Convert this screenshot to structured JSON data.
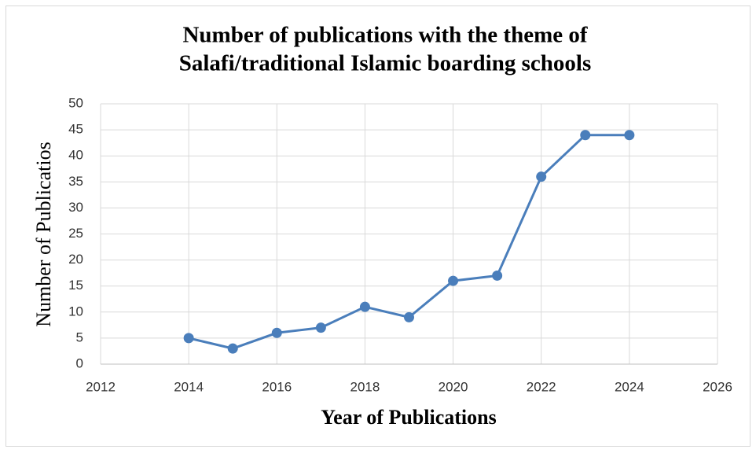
{
  "chart_data": {
    "type": "line",
    "title": [
      "Number of publications with the theme of",
      "Salafi/traditional Islamic boarding schools"
    ],
    "xlabel": "Year of Publications",
    "ylabel": "Number of Publicatios",
    "x": [
      2014,
      2015,
      2016,
      2017,
      2018,
      2019,
      2020,
      2021,
      2022,
      2023,
      2024
    ],
    "series": [
      {
        "name": "Number of Publicatios",
        "color": "#4a7ebb",
        "values": [
          5,
          3,
          6,
          7,
          11,
          9,
          16,
          17,
          36,
          44,
          44
        ]
      }
    ],
    "xlim": [
      2012,
      2026
    ],
    "xticks": [
      2012,
      2014,
      2016,
      2018,
      2020,
      2022,
      2024,
      2026
    ],
    "ylim": [
      0,
      50
    ],
    "yticks": [
      0,
      5,
      10,
      15,
      20,
      25,
      30,
      35,
      40,
      45,
      50
    ],
    "grid": true
  }
}
